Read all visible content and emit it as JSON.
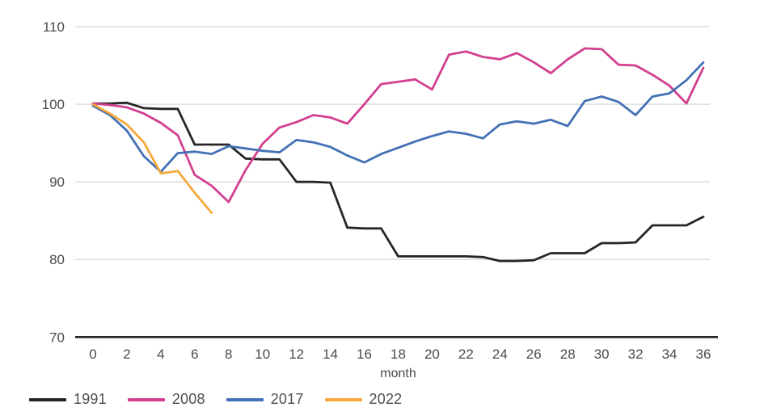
{
  "chart_data": {
    "type": "line",
    "title": "",
    "xlabel": "month",
    "ylabel": "",
    "x": [
      0,
      1,
      2,
      3,
      4,
      5,
      6,
      7,
      8,
      9,
      10,
      11,
      12,
      13,
      14,
      15,
      16,
      17,
      18,
      19,
      20,
      21,
      22,
      23,
      24,
      25,
      26,
      27,
      28,
      29,
      30,
      31,
      32,
      33,
      34,
      35,
      36
    ],
    "x_ticks": [
      0,
      2,
      4,
      6,
      8,
      10,
      12,
      14,
      16,
      18,
      20,
      22,
      24,
      26,
      28,
      30,
      32,
      34,
      36
    ],
    "y_ticks": [
      70,
      80,
      90,
      100,
      110
    ],
    "ylim": [
      70,
      110
    ],
    "xlim": [
      0,
      36
    ],
    "grid": "horizontal",
    "legend_position": "bottom-left",
    "series": [
      {
        "name": "1991",
        "color": "#262626",
        "values": [
          100.1,
          100.1,
          100.2,
          99.5,
          99.4,
          99.4,
          94.8,
          94.8,
          94.8,
          93.0,
          92.9,
          92.9,
          90.0,
          90.0,
          89.9,
          84.1,
          84.0,
          84.0,
          80.4,
          80.4,
          80.4,
          80.4,
          80.4,
          80.3,
          79.8,
          79.8,
          79.9,
          80.8,
          80.8,
          80.8,
          82.1,
          82.1,
          82.2,
          84.4,
          84.4,
          84.4,
          85.5
        ]
      },
      {
        "name": "2008",
        "color": "#d23f8e",
        "values": [
          100.1,
          99.9,
          99.6,
          98.8,
          97.6,
          96.0,
          90.9,
          89.5,
          87.4,
          91.5,
          94.9,
          97.0,
          97.7,
          98.6,
          98.3,
          97.5,
          100.0,
          102.6,
          102.9,
          103.2,
          101.9,
          106.4,
          106.8,
          106.1,
          105.8,
          106.6,
          105.4,
          104.0,
          105.8,
          107.2,
          107.1,
          105.1,
          105.0,
          103.8,
          102.4,
          100.1,
          104.7
        ]
      },
      {
        "name": "2017",
        "color": "#4271b5",
        "values": [
          99.8,
          98.6,
          96.6,
          93.3,
          91.3,
          93.7,
          93.9,
          93.6,
          94.6,
          94.3,
          94.0,
          93.8,
          95.4,
          95.1,
          94.5,
          93.4,
          92.5,
          93.6,
          94.4,
          95.2,
          95.9,
          96.5,
          96.2,
          95.6,
          97.4,
          97.8,
          97.5,
          98.0,
          97.2,
          100.4,
          101.0,
          100.3,
          98.6,
          101.0,
          101.4,
          103.1,
          105.4
        ]
      },
      {
        "name": "2022",
        "color": "#f6a83b",
        "values": [
          100.0,
          98.8,
          97.4,
          95.1,
          91.1,
          91.4,
          88.6,
          86.0
        ]
      }
    ],
    "colors": {
      "gridline": "#d9d9d9",
      "axis_line": "#262626",
      "tick_text": "#4a4a4a"
    }
  }
}
